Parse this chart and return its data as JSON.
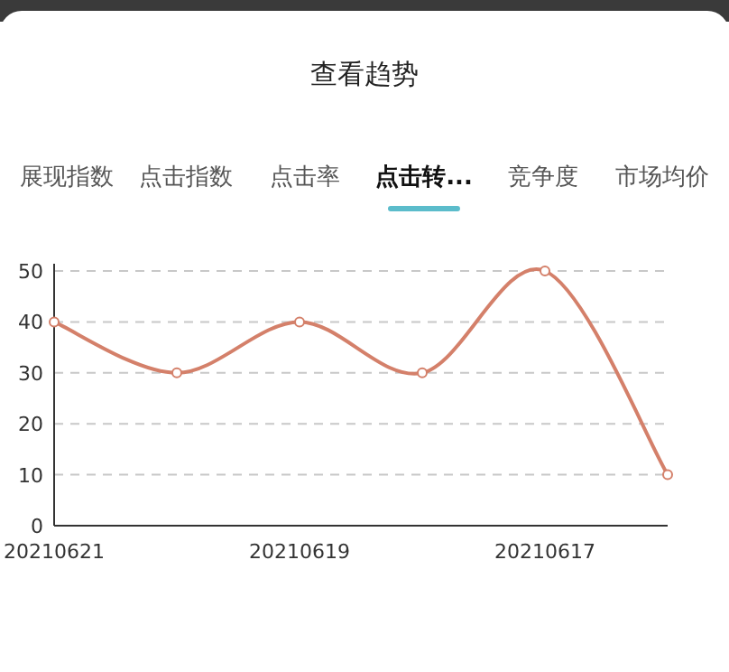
{
  "chart_data": {
    "type": "line",
    "title": "查看趋势",
    "annotations": [
      "展现指数",
      "点击指数",
      "点击率",
      "点击转...",
      "竞争度",
      "市场均价"
    ],
    "categories": [
      "20210621",
      null,
      "20210619",
      null,
      "20210617",
      null
    ],
    "series": [
      {
        "color": "#d4806a",
        "values": [
          40,
          30,
          40,
          30,
          50,
          10
        ]
      }
    ],
    "ylim": [
      0,
      50
    ],
    "yticks": [
      0,
      10,
      20,
      30,
      40,
      50
    ],
    "grid": "y",
    "marker": "circle",
    "line_style": "solid"
  }
}
